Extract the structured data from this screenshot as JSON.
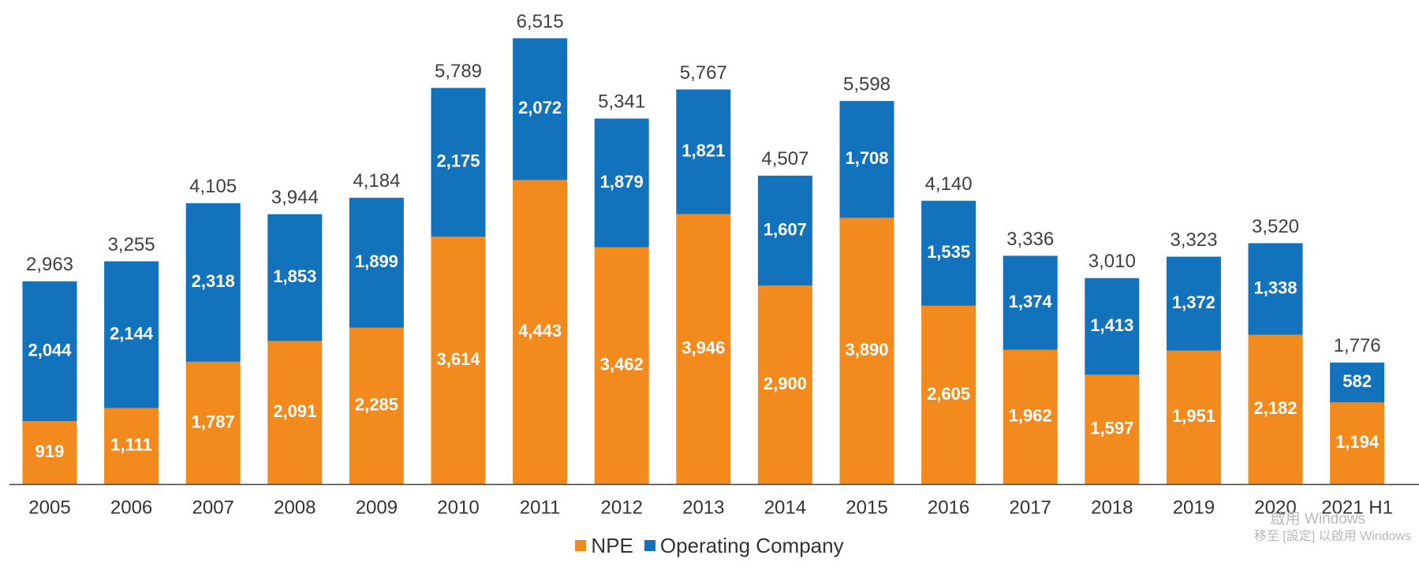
{
  "chart_data": {
    "type": "bar",
    "stacked": true,
    "categories": [
      "2005",
      "2006",
      "2007",
      "2008",
      "2009",
      "2010",
      "2011",
      "2012",
      "2013",
      "2014",
      "2015",
      "2016",
      "2017",
      "2018",
      "2019",
      "2020",
      "2021 H1"
    ],
    "series": [
      {
        "name": "NPE",
        "color": "#F28A1E",
        "values": [
          919,
          1111,
          1787,
          2091,
          2285,
          3614,
          4443,
          3462,
          3946,
          2900,
          3890,
          2605,
          1962,
          1597,
          1951,
          2182,
          1194
        ]
      },
      {
        "name": "Operating Company",
        "color": "#1272BB",
        "values": [
          2044,
          2144,
          2318,
          1853,
          1899,
          2175,
          2072,
          1879,
          1821,
          1607,
          1708,
          1535,
          1374,
          1413,
          1372,
          1338,
          582
        ]
      }
    ],
    "totals": [
      2963,
      3255,
      4105,
      3944,
      4184,
      5789,
      6515,
      5341,
      5767,
      4507,
      5598,
      4140,
      3336,
      3010,
      3323,
      3520,
      1776
    ],
    "legend_position": "bottom-center",
    "grid": false
  },
  "watermark": {
    "line1": "啟用 Windows",
    "line2": "移至 [設定] 以啟用 Windows"
  }
}
